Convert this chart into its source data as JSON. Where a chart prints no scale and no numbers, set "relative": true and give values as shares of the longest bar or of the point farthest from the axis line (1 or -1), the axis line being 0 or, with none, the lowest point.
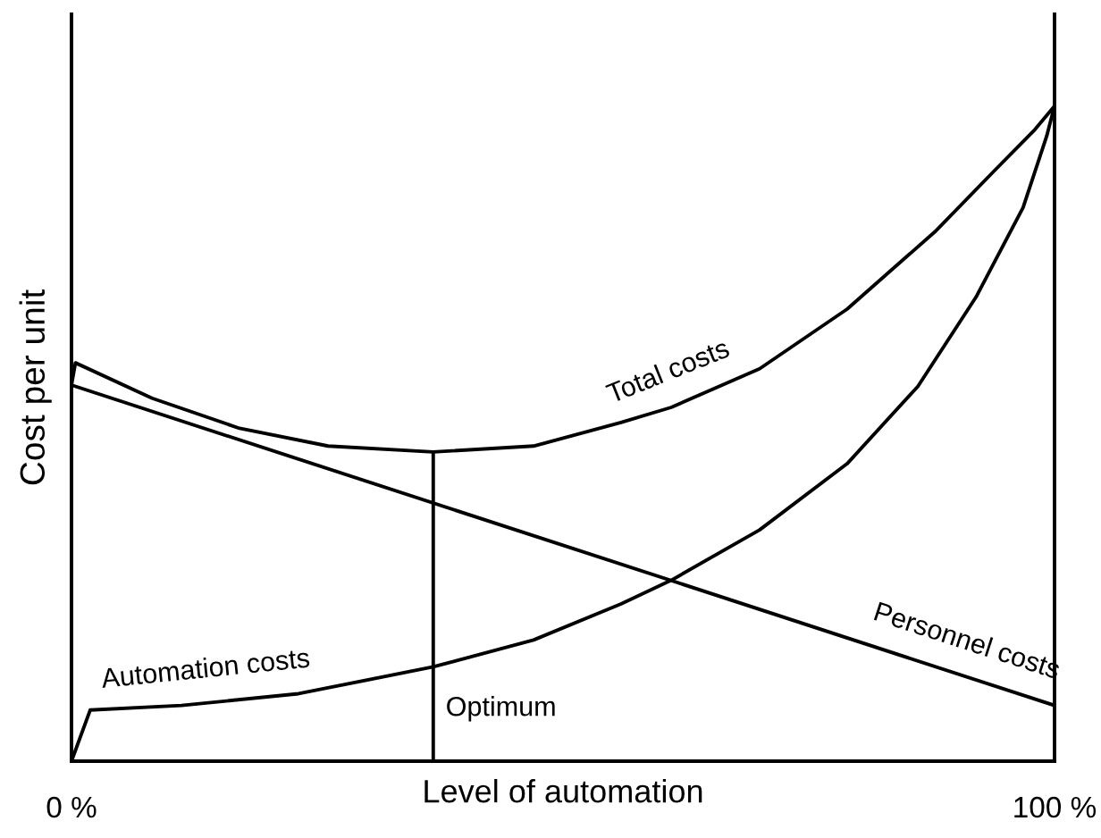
{
  "chart_data": {
    "type": "line",
    "relative": true,
    "xlabel": "Level of automation",
    "ylabel": "Cost per unit",
    "xlim": [
      0,
      100
    ],
    "xticks": [
      {
        "value": 0,
        "label": "0 %"
      },
      {
        "value": 100,
        "label": "100 %"
      }
    ],
    "legend": false,
    "marker": "none",
    "line_style": "solid",
    "tick_labels": "x",
    "series": [
      {
        "name": "Total costs",
        "color": "#000000",
        "x": [
          0,
          0.4,
          8.2,
          17.1,
          26.1,
          36.8,
          47.0,
          55.9,
          61.0,
          70.0,
          78.9,
          87.9,
          93.8,
          98.0,
          100
        ],
        "values": [
          0.574,
          0.608,
          0.554,
          0.508,
          0.481,
          0.472,
          0.481,
          0.517,
          0.54,
          0.599,
          0.69,
          0.809,
          0.9,
          0.964,
          1.0
        ]
      },
      {
        "name": "Personnel costs",
        "color": "#000000",
        "x": [
          0,
          100
        ],
        "values": [
          0.574,
          0.085
        ]
      },
      {
        "name": "Automation costs",
        "color": "#000000",
        "x": [
          0,
          1.9,
          11.2,
          23.1,
          36.8,
          47.0,
          55.9,
          61.0,
          70.0,
          78.9,
          86.1,
          92.0,
          96.8,
          99.2,
          100
        ],
        "values": [
          0,
          0.078,
          0.085,
          0.103,
          0.144,
          0.185,
          0.24,
          0.276,
          0.353,
          0.454,
          0.572,
          0.708,
          0.845,
          0.954,
          1.0
        ]
      },
      {
        "color": "#000000",
        "x": [
          36.8,
          36.8
        ],
        "values": [
          0,
          0.472
        ]
      }
    ],
    "annotations": [
      {
        "text": "Optimum",
        "x": 36.8,
        "y": 0.08
      }
    ]
  }
}
